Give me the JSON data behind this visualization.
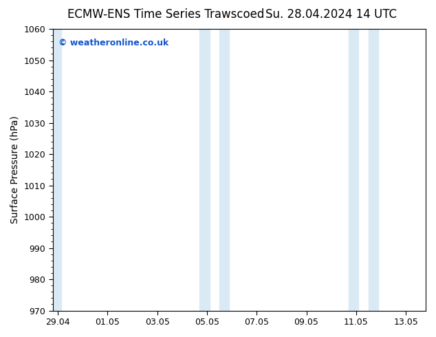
{
  "title_left": "ECMW-ENS Time Series Trawscoed",
  "title_right": "Su. 28.04.2024 14 UTC",
  "ylabel": "Surface Pressure (hPa)",
  "ylim": [
    970,
    1060
  ],
  "yticks": [
    970,
    980,
    990,
    1000,
    1010,
    1020,
    1030,
    1040,
    1050,
    1060
  ],
  "x_tick_labels": [
    "29.04",
    "01.05",
    "03.05",
    "05.05",
    "07.05",
    "09.05",
    "11.05",
    "13.05"
  ],
  "x_tick_positions": [
    0,
    2,
    4,
    6,
    8,
    10,
    12,
    14
  ],
  "xlim": [
    -0.2,
    14.8
  ],
  "background_color": "#ffffff",
  "plot_bg_color": "#ffffff",
  "shaded_bands": [
    {
      "x_start": -0.2,
      "x_end": 0.15
    },
    {
      "x_start": 5.7,
      "x_end": 6.1
    },
    {
      "x_start": 6.5,
      "x_end": 6.9
    },
    {
      "x_start": 11.7,
      "x_end": 12.1
    },
    {
      "x_start": 12.5,
      "x_end": 12.9
    }
  ],
  "shaded_color": "#daeaf5",
  "copyright_text": "© weatheronline.co.uk",
  "copyright_color": "#1155cc",
  "title_fontsize": 12,
  "tick_fontsize": 9,
  "ylabel_fontsize": 10
}
